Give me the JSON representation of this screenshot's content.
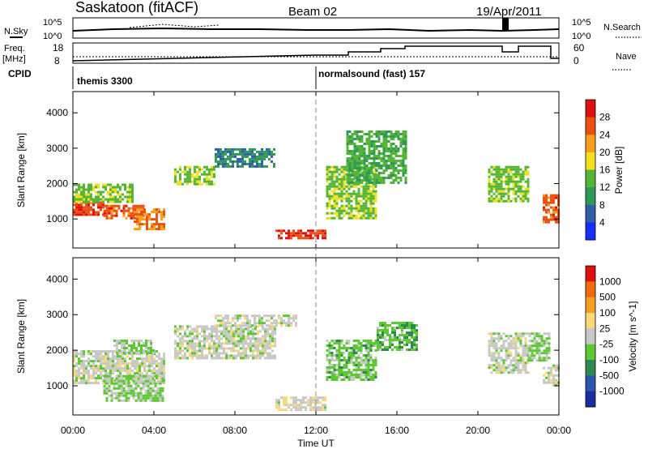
{
  "header": {
    "site": "Saskatoon (fitACF)",
    "beam": "Beam 02",
    "date": "19/Apr/2011"
  },
  "noise_panel": {
    "left_label": "N.Sky",
    "left_ticks": [
      "10^5",
      "10^0"
    ],
    "right_ticks": [
      "10^5",
      "10^0"
    ],
    "right_label": "N.Search"
  },
  "freq_panel": {
    "left_label_1": "Freq.",
    "left_label_2": "[MHz]",
    "left_ticks": [
      "18",
      "8"
    ],
    "right_ticks": [
      "60",
      "0"
    ],
    "right_label": "Nave"
  },
  "cpid": {
    "label": "CPID",
    "modes": [
      "themis 3300",
      "normalsound (fast) 157"
    ]
  },
  "x_axis": {
    "label": "Time UT",
    "ticks": [
      "00:00",
      "04:00",
      "08:00",
      "12:00",
      "16:00",
      "20:00",
      "00:00"
    ]
  },
  "chart_data": [
    {
      "type": "heatmap",
      "title": "",
      "xlabel": "Time UT",
      "ylabel": "Slant Range [km]",
      "xlim": [
        0,
        24
      ],
      "ylim": [
        180,
        4600
      ],
      "y_ticks": [
        "1000",
        "2000",
        "3000",
        "4000"
      ],
      "colorbar": {
        "label": "Power [dB]",
        "ticks": [
          "28",
          "24",
          "20",
          "16",
          "12",
          "8",
          "4"
        ],
        "range": [
          0,
          30
        ],
        "colors": [
          "#1530ff",
          "#2e5fa8",
          "#2f9a55",
          "#55b536",
          "#f0e020",
          "#f5a018",
          "#ec5010",
          "#e01010"
        ]
      },
      "regions": [
        {
          "t0": 0.0,
          "t1": 1.5,
          "r0": 1100,
          "r1": 1500,
          "value": 26
        },
        {
          "t0": 1.5,
          "t1": 3.5,
          "r0": 1000,
          "r1": 1400,
          "value": 24
        },
        {
          "t0": 3.0,
          "t1": 4.5,
          "r0": 700,
          "r1": 1300,
          "value": 22
        },
        {
          "t0": 0.0,
          "t1": 3.0,
          "r0": 1500,
          "r1": 2000,
          "value": 14
        },
        {
          "t0": 5.0,
          "t1": 7.0,
          "r0": 2000,
          "r1": 2500,
          "value": 14
        },
        {
          "t0": 7.0,
          "t1": 10.0,
          "r0": 2500,
          "r1": 3000,
          "value": 8
        },
        {
          "t0": 10.0,
          "t1": 12.5,
          "r0": 450,
          "r1": 700,
          "value": 26
        },
        {
          "t0": 12.5,
          "t1": 15.0,
          "r0": 1000,
          "r1": 2500,
          "value": 14
        },
        {
          "t0": 13.5,
          "t1": 16.5,
          "r0": 2000,
          "r1": 3500,
          "value": 12
        },
        {
          "t0": 20.5,
          "t1": 22.5,
          "r0": 1500,
          "r1": 2500,
          "value": 14
        },
        {
          "t0": 23.2,
          "t1": 24.0,
          "r0": 900,
          "r1": 1700,
          "value": 24
        }
      ]
    },
    {
      "type": "heatmap",
      "title": "",
      "xlabel": "Time UT",
      "ylabel": "Slant Range [km]",
      "xlim": [
        0,
        24
      ],
      "ylim": [
        180,
        4600
      ],
      "y_ticks": [
        "1000",
        "2000",
        "3000",
        "4000"
      ],
      "colorbar": {
        "label": "Velocity [m s^-1]",
        "ticks": [
          "1000",
          "500",
          "100",
          "25",
          "-25",
          "-100",
          "-500",
          "-1000"
        ],
        "range": [
          -1000,
          1000
        ],
        "colors": [
          "#1a2ea0",
          "#2a58a8",
          "#2f8a50",
          "#5cc832",
          "#c8c8c8",
          "#f8d878",
          "#f5a020",
          "#ef6a10",
          "#e01010"
        ]
      },
      "regions": [
        {
          "t0": 0.0,
          "t1": 4.5,
          "r0": 1100,
          "r1": 2000,
          "value": 0
        },
        {
          "t0": 1.5,
          "t1": 4.5,
          "r0": 600,
          "r1": 1300,
          "value": -150
        },
        {
          "t0": 2.0,
          "t1": 4.0,
          "r0": 1900,
          "r1": 2300,
          "value": -120
        },
        {
          "t0": 5.0,
          "t1": 10.0,
          "r0": 1800,
          "r1": 2700,
          "value": 0
        },
        {
          "t0": 7.0,
          "t1": 11.0,
          "r0": 2700,
          "r1": 3000,
          "value": 0
        },
        {
          "t0": 10.0,
          "t1": 12.5,
          "r0": 300,
          "r1": 700,
          "value": 60
        },
        {
          "t0": 12.5,
          "t1": 15.0,
          "r0": 1200,
          "r1": 2300,
          "value": -200
        },
        {
          "t0": 15.0,
          "t1": 17.0,
          "r0": 2000,
          "r1": 2800,
          "value": -250
        },
        {
          "t0": 20.5,
          "t1": 22.5,
          "r0": 1400,
          "r1": 2500,
          "value": 0
        },
        {
          "t0": 22.5,
          "t1": 23.5,
          "r0": 1700,
          "r1": 2500,
          "value": -150
        },
        {
          "t0": 23.2,
          "t1": 24.0,
          "r0": 1000,
          "r1": 1600,
          "value": 0
        }
      ]
    }
  ]
}
